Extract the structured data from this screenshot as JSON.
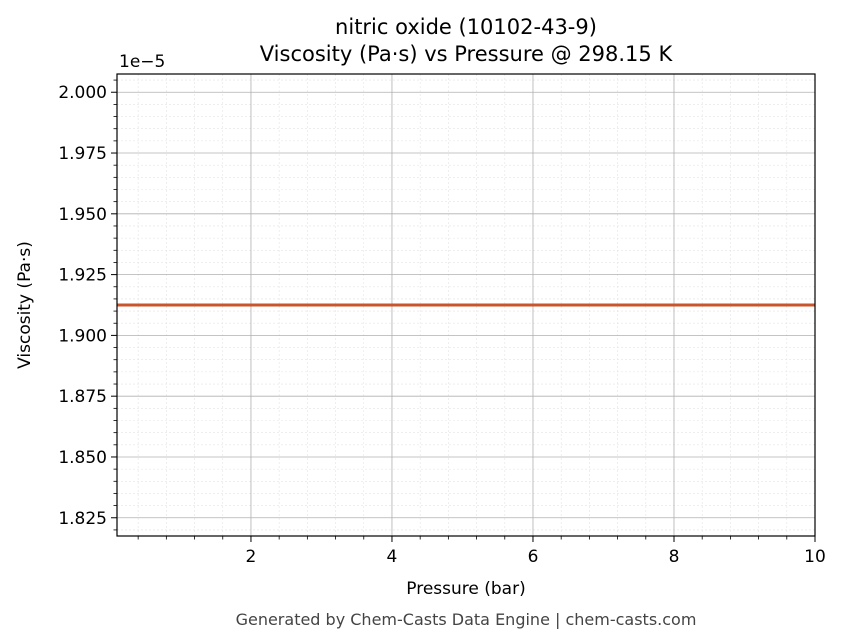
{
  "chart_data": {
    "type": "line",
    "title": "nitric oxide (10102-43-9)",
    "subtitle": "Viscosity (Pa·s) vs Pressure @ 298.15 K",
    "xlabel": "Pressure (bar)",
    "ylabel": "Viscosity (Pa·s)",
    "offset_label": "1e−5",
    "xlim": [
      0.1,
      10
    ],
    "ylim": [
      1.8175,
      2.0075
    ],
    "x_ticks": [
      2,
      4,
      6,
      8,
      10
    ],
    "x_tick_labels": [
      "2",
      "4",
      "6",
      "8",
      "10"
    ],
    "y_ticks": [
      1.825,
      1.85,
      1.875,
      1.9,
      1.925,
      1.95,
      1.975,
      2.0
    ],
    "y_tick_labels": [
      "1.825",
      "1.850",
      "1.875",
      "1.900",
      "1.925",
      "1.950",
      "1.975",
      "2.000"
    ],
    "grid": true,
    "series": [
      {
        "x": [
          0.1,
          10
        ],
        "y": [
          1.9125,
          1.9125
        ],
        "color": "#c8552b"
      }
    ]
  },
  "footer": "Generated by Chem-Casts Data Engine | chem-casts.com"
}
